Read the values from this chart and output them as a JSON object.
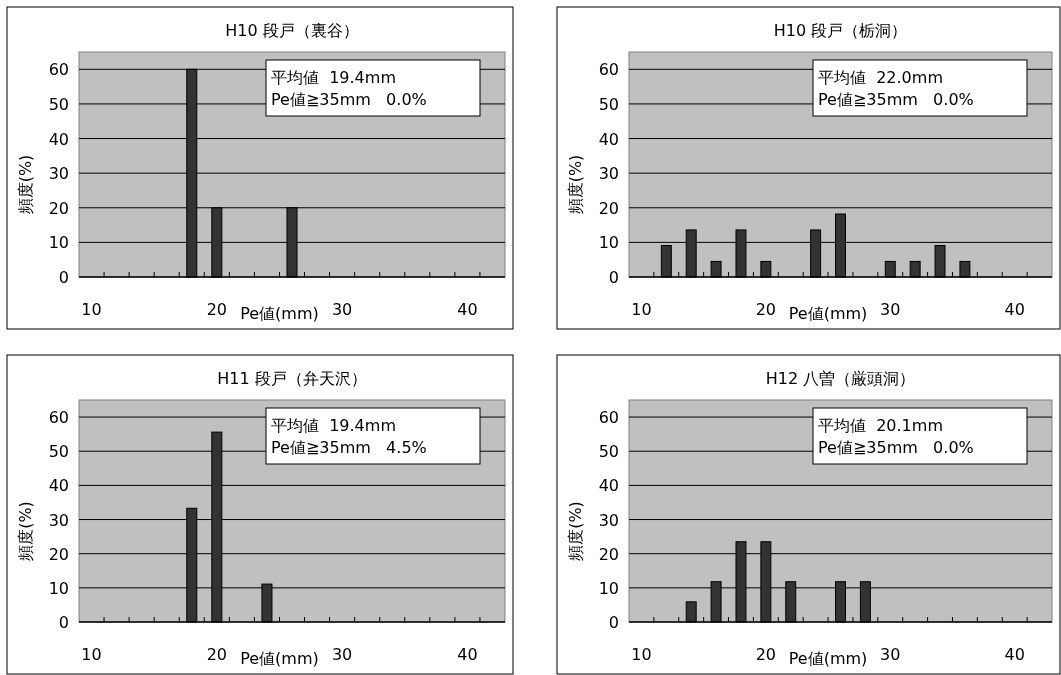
{
  "chart_data": [
    {
      "type": "bar",
      "title": "H10 段戸（裏谷）",
      "xlabel": "Pe値(mm)",
      "ylabel": "頻度(%)",
      "annotations": [
        "平均値  19.4mm",
        "Pe値≧35mm   0.0%"
      ],
      "x": [
        18,
        20,
        26
      ],
      "values": [
        60,
        20,
        20
      ],
      "color": "#333333",
      "xlim": [
        9,
        43
      ],
      "ylim": [
        0,
        65
      ],
      "xticks": [
        10,
        20,
        30,
        40,
        {
          "value": 11,
          "label": null
        },
        {
          "value": 13,
          "label": null
        },
        {
          "value": 15,
          "label": null
        },
        {
          "value": 17,
          "label": null
        },
        {
          "value": 19,
          "label": null
        },
        {
          "value": 21,
          "label": null
        },
        {
          "value": 23,
          "label": null
        },
        {
          "value": 25,
          "label": null
        },
        {
          "value": 27,
          "label": null
        },
        {
          "value": 29,
          "label": null
        },
        {
          "value": 31,
          "label": null
        },
        {
          "value": 33,
          "label": null
        },
        {
          "value": 35,
          "label": null
        },
        {
          "value": 37,
          "label": null
        },
        {
          "value": 39,
          "label": null
        },
        {
          "value": 41,
          "label": null
        }
      ],
      "yticks": [
        0,
        10,
        20,
        30,
        40,
        50,
        60
      ],
      "grid": "y"
    },
    {
      "type": "bar",
      "title": "H10 段戸（栃洞）",
      "xlabel": "Pe値(mm)",
      "ylabel": "頻度(%)",
      "annotations": [
        "平均値  22.0mm",
        "Pe値≧35mm   0.0%"
      ],
      "x": [
        12,
        14,
        16,
        18,
        20,
        24,
        26,
        30,
        32,
        34,
        36
      ],
      "values": [
        9.1,
        13.6,
        4.5,
        13.6,
        4.5,
        13.6,
        18.2,
        4.5,
        4.5,
        9.1,
        4.5
      ],
      "color": "#333333",
      "xlim": [
        9,
        43
      ],
      "ylim": [
        0,
        65
      ],
      "xticks": [
        10,
        20,
        30,
        40,
        {
          "value": 11,
          "label": null
        },
        {
          "value": 13,
          "label": null
        },
        {
          "value": 15,
          "label": null
        },
        {
          "value": 17,
          "label": null
        },
        {
          "value": 19,
          "label": null
        },
        {
          "value": 21,
          "label": null
        },
        {
          "value": 23,
          "label": null
        },
        {
          "value": 25,
          "label": null
        },
        {
          "value": 27,
          "label": null
        },
        {
          "value": 29,
          "label": null
        },
        {
          "value": 31,
          "label": null
        },
        {
          "value": 33,
          "label": null
        },
        {
          "value": 35,
          "label": null
        },
        {
          "value": 37,
          "label": null
        },
        {
          "value": 39,
          "label": null
        },
        {
          "value": 41,
          "label": null
        }
      ],
      "yticks": [
        0,
        10,
        20,
        30,
        40,
        50,
        60
      ],
      "grid": "y"
    },
    {
      "type": "bar",
      "title": "H11 段戸（弁天沢）",
      "xlabel": "Pe値(mm)",
      "ylabel": "頻度(%)",
      "annotations": [
        "平均値  19.4mm",
        "Pe値≧35mm   4.5%"
      ],
      "x": [
        18,
        20,
        24
      ],
      "values": [
        33.3,
        55.6,
        11.1
      ],
      "color": "#333333",
      "xlim": [
        9,
        43
      ],
      "ylim": [
        0,
        65
      ],
      "xticks": [
        10,
        20,
        30,
        40,
        {
          "value": 11,
          "label": null
        },
        {
          "value": 13,
          "label": null
        },
        {
          "value": 15,
          "label": null
        },
        {
          "value": 17,
          "label": null
        },
        {
          "value": 19,
          "label": null
        },
        {
          "value": 21,
          "label": null
        },
        {
          "value": 23,
          "label": null
        },
        {
          "value": 25,
          "label": null
        },
        {
          "value": 27,
          "label": null
        },
        {
          "value": 29,
          "label": null
        },
        {
          "value": 31,
          "label": null
        },
        {
          "value": 33,
          "label": null
        },
        {
          "value": 35,
          "label": null
        },
        {
          "value": 37,
          "label": null
        },
        {
          "value": 39,
          "label": null
        },
        {
          "value": 41,
          "label": null
        }
      ],
      "yticks": [
        0,
        10,
        20,
        30,
        40,
        50,
        60
      ],
      "grid": "y"
    },
    {
      "type": "bar",
      "title": "H12 八曽（厳頭洞）",
      "xlabel": "Pe値(mm)",
      "ylabel": "頻度(%)",
      "annotations": [
        "平均値  20.1mm",
        "Pe値≧35mm   0.0%"
      ],
      "x": [
        14,
        16,
        18,
        20,
        22,
        26,
        28
      ],
      "values": [
        5.9,
        11.8,
        23.5,
        23.5,
        11.8,
        11.8,
        11.8
      ],
      "color": "#333333",
      "xlim": [
        9,
        43
      ],
      "ylim": [
        0,
        65
      ],
      "xticks": [
        10,
        20,
        30,
        40,
        {
          "value": 11,
          "label": null
        },
        {
          "value": 13,
          "label": null
        },
        {
          "value": 15,
          "label": null
        },
        {
          "value": 17,
          "label": null
        },
        {
          "value": 19,
          "label": null
        },
        {
          "value": 21,
          "label": null
        },
        {
          "value": 23,
          "label": null
        },
        {
          "value": 25,
          "label": null
        },
        {
          "value": 27,
          "label": null
        },
        {
          "value": 29,
          "label": null
        },
        {
          "value": 31,
          "label": null
        },
        {
          "value": 33,
          "label": null
        },
        {
          "value": 35,
          "label": null
        },
        {
          "value": 37,
          "label": null
        },
        {
          "value": 39,
          "label": null
        },
        {
          "value": 41,
          "label": null
        }
      ],
      "yticks": [
        0,
        10,
        20,
        30,
        40,
        50,
        60
      ],
      "grid": "y"
    }
  ]
}
